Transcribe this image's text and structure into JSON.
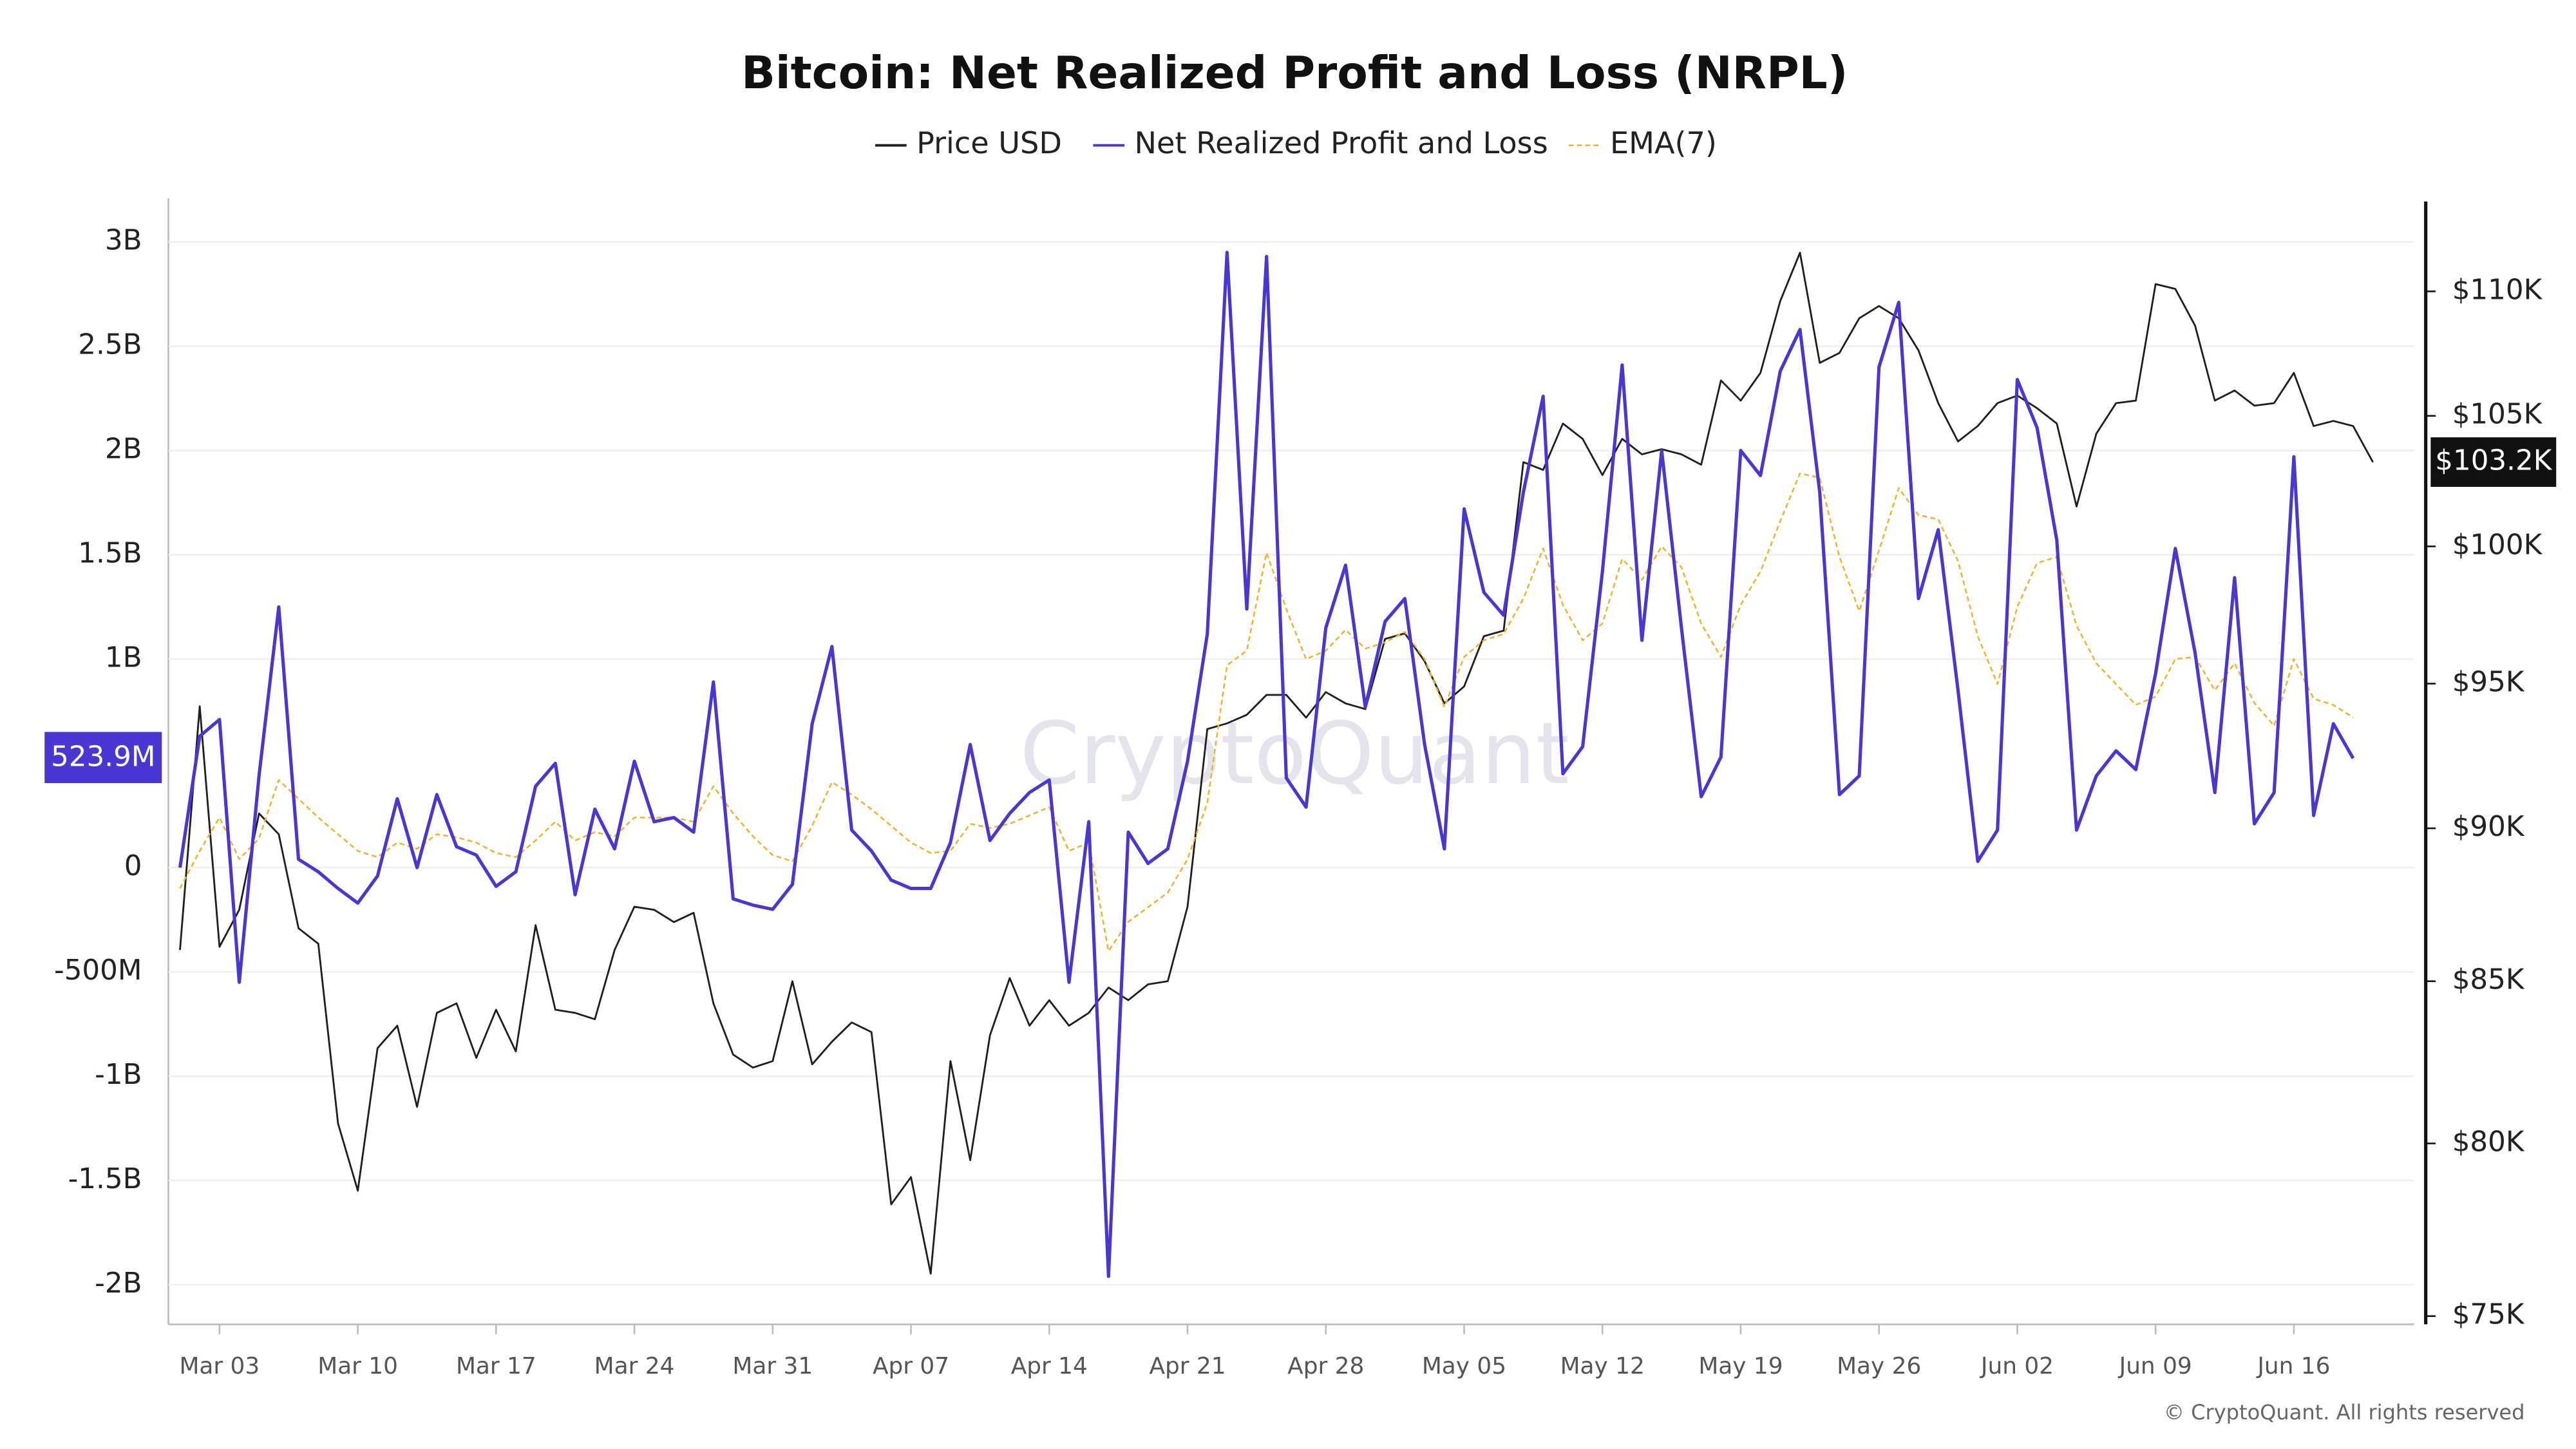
{
  "chart_data": {
    "type": "line",
    "title": "Bitcoin: Net Realized Profit and Loss (NRPL)",
    "watermark": "CryptoQuant",
    "copyright": "© CryptoQuant. All rights reserved",
    "categories": [
      "Mar 01",
      "Mar 02",
      "Mar 03",
      "Mar 04",
      "Mar 05",
      "Mar 06",
      "Mar 07",
      "Mar 08",
      "Mar 09",
      "Mar 10",
      "Mar 11",
      "Mar 12",
      "Mar 13",
      "Mar 14",
      "Mar 15",
      "Mar 16",
      "Mar 17",
      "Mar 18",
      "Mar 19",
      "Mar 20",
      "Mar 21",
      "Mar 22",
      "Mar 23",
      "Mar 24",
      "Mar 25",
      "Mar 26",
      "Mar 27",
      "Mar 28",
      "Mar 29",
      "Mar 30",
      "Mar 31",
      "Apr 01",
      "Apr 02",
      "Apr 03",
      "Apr 04",
      "Apr 05",
      "Apr 06",
      "Apr 07",
      "Apr 08",
      "Apr 09",
      "Apr 10",
      "Apr 11",
      "Apr 12",
      "Apr 13",
      "Apr 14",
      "Apr 15",
      "Apr 16",
      "Apr 17",
      "Apr 18",
      "Apr 19",
      "Apr 20",
      "Apr 21",
      "Apr 22",
      "Apr 23",
      "Apr 24",
      "Apr 25",
      "Apr 26",
      "Apr 27",
      "Apr 28",
      "Apr 29",
      "Apr 30",
      "May 01",
      "May 02",
      "May 03",
      "May 04",
      "May 05",
      "May 06",
      "May 07",
      "May 08",
      "May 09",
      "May 10",
      "May 11",
      "May 12",
      "May 13",
      "May 14",
      "May 15",
      "May 16",
      "May 17",
      "May 18",
      "May 19",
      "May 20",
      "May 21",
      "May 22",
      "May 23",
      "May 24",
      "May 25",
      "May 26",
      "May 27",
      "May 28",
      "May 29",
      "May 30",
      "May 31",
      "Jun 01",
      "Jun 02",
      "Jun 03",
      "Jun 04",
      "Jun 05",
      "Jun 06",
      "Jun 07",
      "Jun 08",
      "Jun 09",
      "Jun 10",
      "Jun 11",
      "Jun 12",
      "Jun 13",
      "Jun 14",
      "Jun 15",
      "Jun 16",
      "Jun 17",
      "Jun 18",
      "Jun 19",
      "Jun 20"
    ],
    "xticks": [
      "Mar 03",
      "Mar 10",
      "Mar 17",
      "Mar 24",
      "Mar 31",
      "Apr 07",
      "Apr 14",
      "Apr 21",
      "Apr 28",
      "May 05",
      "May 12",
      "May 19",
      "May 26",
      "Jun 02",
      "Jun 09",
      "Jun 16"
    ],
    "ylim": [
      -2.19,
      3.21
    ],
    "yticks": [
      {
        "value": -2,
        "label": "-2B"
      },
      {
        "value": -1.5,
        "label": "-1.5B"
      },
      {
        "value": -1,
        "label": "-1B"
      },
      {
        "value": -0.5,
        "label": "-500M"
      },
      0,
      {
        "value": 1,
        "label": "1B"
      },
      {
        "value": 1.5,
        "label": "1.5B"
      },
      {
        "value": 2,
        "label": "2B"
      },
      {
        "value": 2.5,
        "label": "2.5B"
      },
      {
        "value": 3,
        "label": "3B"
      }
    ],
    "y2lim": [
      74770,
      113900
    ],
    "y2log": true,
    "y2ticks": [
      {
        "value": 75000,
        "label": "$75K"
      },
      {
        "value": 80000,
        "label": "$80K"
      },
      {
        "value": 85000,
        "label": "$85K"
      },
      {
        "value": 90000,
        "label": "$90K"
      },
      {
        "value": 95000,
        "label": "$95K"
      },
      {
        "value": 100000,
        "label": "$100K"
      },
      {
        "value": 105000,
        "label": "$105K"
      },
      {
        "value": 110000,
        "label": "$110K"
      }
    ],
    "grid": true,
    "series": [
      {
        "name": "Price USD",
        "color": "#1f1f1f",
        "axis": "y2",
        "value_label": "$103.2K",
        "values": [
          86000,
          94200,
          86100,
          87300,
          90500,
          89800,
          86700,
          86200,
          80600,
          78600,
          82900,
          83600,
          81100,
          84000,
          84300,
          82600,
          84100,
          82800,
          86800,
          84100,
          84000,
          83800,
          86000,
          87400,
          87300,
          86900,
          87200,
          84300,
          82700,
          82300,
          82500,
          85000,
          82400,
          83100,
          83700,
          83400,
          78200,
          79000,
          76200,
          82500,
          79500,
          83300,
          85100,
          83600,
          84400,
          83600,
          84000,
          84800,
          84400,
          84900,
          85000,
          87400,
          93400,
          93600,
          93900,
          94600,
          94600,
          93800,
          94700,
          94300,
          94100,
          96600,
          96800,
          95800,
          94300,
          94900,
          96700,
          96900,
          103200,
          102900,
          104700,
          104100,
          102700,
          104100,
          103500,
          103700,
          103500,
          103100,
          106400,
          105600,
          106700,
          109600,
          111600,
          107100,
          107500,
          108900,
          109400,
          108900,
          107600,
          105500,
          104000,
          104600,
          105500,
          105800,
          105300,
          104700,
          101500,
          104300,
          105500,
          105600,
          110300,
          110100,
          108600,
          105600,
          106000,
          105400,
          105500,
          106700,
          104600,
          104800,
          104600,
          103200
        ]
      },
      {
        "name": "Net Realized Profit and Loss",
        "color": "#4a36d3",
        "value_label": "523.9M",
        "values": [
          0.0,
          0.63,
          0.71,
          -0.55,
          0.44,
          1.25,
          0.04,
          -0.02,
          -0.1,
          -0.17,
          -0.04,
          0.33,
          0.0,
          0.35,
          0.1,
          0.06,
          -0.09,
          -0.02,
          0.39,
          0.5,
          -0.13,
          0.28,
          0.09,
          0.51,
          0.22,
          0.24,
          0.17,
          0.89,
          -0.15,
          -0.18,
          -0.2,
          -0.08,
          0.69,
          1.06,
          0.18,
          0.08,
          -0.06,
          -0.1,
          -0.1,
          0.12,
          0.59,
          0.13,
          0.26,
          0.36,
          0.42,
          -0.55,
          0.22,
          -1.96,
          0.17,
          0.02,
          0.09,
          0.51,
          1.12,
          2.95,
          1.24,
          2.93,
          0.43,
          0.29,
          1.15,
          1.45,
          0.77,
          1.18,
          1.29,
          0.59,
          0.09,
          1.72,
          1.32,
          1.21,
          1.8,
          2.26,
          0.45,
          0.58,
          1.42,
          2.41,
          1.09,
          2.0,
          1.15,
          0.34,
          0.53,
          2.0,
          1.88,
          2.38,
          2.58,
          1.8,
          0.35,
          0.44,
          2.4,
          2.71,
          1.29,
          1.62,
          0.85,
          0.03,
          0.18,
          2.34,
          2.11,
          1.57,
          0.18,
          0.44,
          0.56,
          0.47,
          0.93,
          1.53,
          1.03,
          0.36,
          1.39,
          0.21,
          0.36,
          1.97,
          0.25,
          0.69,
          0.5239,
          null
        ]
      },
      {
        "name": "EMA(7)",
        "color": "#f0b429",
        "dashed": true,
        "values": [
          -0.1,
          0.08,
          0.24,
          0.04,
          0.14,
          0.42,
          0.33,
          0.24,
          0.16,
          0.08,
          0.05,
          0.12,
          0.09,
          0.16,
          0.145,
          0.12,
          0.07,
          0.05,
          0.13,
          0.22,
          0.13,
          0.17,
          0.15,
          0.24,
          0.24,
          0.24,
          0.22,
          0.39,
          0.26,
          0.15,
          0.06,
          0.03,
          0.2,
          0.41,
          0.35,
          0.28,
          0.2,
          0.12,
          0.07,
          0.08,
          0.21,
          0.19,
          0.21,
          0.25,
          0.29,
          0.08,
          0.12,
          -0.4,
          -0.26,
          -0.19,
          -0.12,
          0.04,
          0.31,
          0.97,
          1.04,
          1.51,
          1.24,
          1.0,
          1.04,
          1.14,
          1.05,
          1.08,
          1.13,
          1.0,
          0.77,
          1.01,
          1.09,
          1.12,
          1.29,
          1.53,
          1.26,
          1.09,
          1.17,
          1.48,
          1.38,
          1.54,
          1.44,
          1.17,
          1.01,
          1.26,
          1.42,
          1.66,
          1.89,
          1.87,
          1.49,
          1.23,
          1.52,
          1.82,
          1.69,
          1.67,
          1.47,
          1.11,
          0.88,
          1.25,
          1.46,
          1.49,
          1.16,
          0.98,
          0.88,
          0.78,
          0.82,
          1.0,
          1.01,
          0.85,
          0.98,
          0.79,
          0.68,
          1.0,
          0.81,
          0.78,
          0.72,
          null
        ]
      }
    ]
  }
}
